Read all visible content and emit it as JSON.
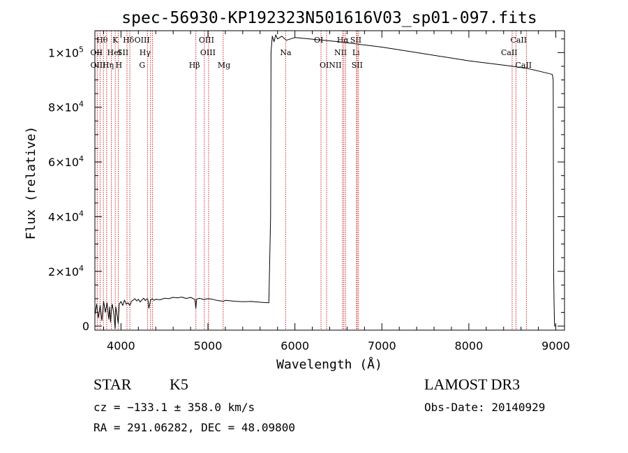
{
  "chart_data": {
    "type": "line",
    "title": "spec-56930-KP192323N501616V03_sp01-097.fits",
    "xlabel": "Wavelength (Å)",
    "ylabel": "Flux (relative)",
    "xlim": [
      3700,
      9100
    ],
    "ylim": [
      -1500,
      108000
    ],
    "x_ticks": [
      4000,
      5000,
      6000,
      7000,
      8000,
      9000
    ],
    "x_tick_labels": [
      "4000",
      "5000",
      "6000",
      "7000",
      "8000",
      "9000"
    ],
    "y_ticks": [
      {
        "value": 0,
        "mant": "0",
        "exp": ""
      },
      {
        "value": 20000,
        "mant": "2×10",
        "exp": "4"
      },
      {
        "value": 40000,
        "mant": "4×10",
        "exp": "4"
      },
      {
        "value": 60000,
        "mant": "6×10",
        "exp": "4"
      },
      {
        "value": 80000,
        "mant": "8×10",
        "exp": "4"
      },
      {
        "value": 100000,
        "mant": "1×10",
        "exp": "5"
      }
    ],
    "series": [
      {
        "name": "flux",
        "x": [
          3700,
          3720,
          3740,
          3760,
          3780,
          3800,
          3820,
          3840,
          3860,
          3870,
          3880,
          3890,
          3900,
          3920,
          3933,
          3940,
          3960,
          3968,
          3980,
          4000,
          4020,
          4040,
          4060,
          4080,
          4101,
          4120,
          4140,
          4160,
          4180,
          4200,
          4220,
          4240,
          4260,
          4280,
          4300,
          4310,
          4320,
          4340,
          4360,
          4380,
          4400,
          4450,
          4500,
          4550,
          4600,
          4650,
          4700,
          4750,
          4800,
          4850,
          4861,
          4870,
          4900,
          4950,
          5000,
          5050,
          5100,
          5150,
          5175,
          5200,
          5300,
          5400,
          5500,
          5600,
          5700,
          5720,
          5725,
          5740,
          5760,
          5780,
          5800,
          5850,
          5900,
          6000,
          6500,
          7000,
          7500,
          8000,
          8500,
          8700,
          8900,
          8960,
          8970,
          8975,
          8980,
          8985,
          9000
        ],
        "y": [
          4000,
          8000,
          3000,
          7500,
          2000,
          9000,
          5000,
          8500,
          2500,
          7000,
          1500,
          6000,
          8000,
          4000,
          -1000,
          7000,
          3000,
          1000,
          8000,
          9000,
          7500,
          9500,
          8000,
          8500,
          7500,
          9000,
          9500,
          10000,
          9200,
          9800,
          8800,
          9500,
          10200,
          9300,
          10000,
          9600,
          6500,
          9500,
          10000,
          9400,
          9800,
          9600,
          10200,
          10000,
          10500,
          10300,
          10600,
          10100,
          10500,
          9700,
          6500,
          9800,
          10200,
          9700,
          10000,
          9800,
          9400,
          9200,
          9000,
          9400,
          9100,
          8900,
          9000,
          8700,
          8500,
          40000,
          100000,
          106000,
          104000,
          106500,
          105000,
          106000,
          104500,
          105500,
          104000,
          102000,
          99500,
          97000,
          95000,
          94000,
          92500,
          92000,
          90000,
          20000,
          9000,
          0,
          0
        ]
      }
    ],
    "lines": [
      {
        "label": "Hθ",
        "wave": 3798,
        "row": 0,
        "dx": -10
      },
      {
        "label": "OII",
        "wave": 3727,
        "row": 1,
        "dx": -10
      },
      {
        "label": "OIII",
        "wave": 3760,
        "row": 2,
        "dx": -14
      },
      {
        "label": "K",
        "wave": 3934,
        "row": 0,
        "dx": -4
      },
      {
        "label": "HeI",
        "wave": 3889,
        "row": 1,
        "dx": -6
      },
      {
        "label": "Hη",
        "wave": 3835,
        "row": 2,
        "dx": -6
      },
      {
        "label": "H",
        "wave": 3969,
        "row": 2,
        "dx": -4
      },
      {
        "label": "SII",
        "wave": 4069,
        "row": 1,
        "dx": -14
      },
      {
        "label": "Hδ",
        "wave": 4102,
        "row": 0,
        "dx": -10
      },
      {
        "label": "OIII",
        "wave": 4363,
        "row": 0,
        "dx": -26
      },
      {
        "label": "Hγ",
        "wave": 4340,
        "row": 1,
        "dx": -16
      },
      {
        "label": "G",
        "wave": 4305,
        "row": 2,
        "dx": -12
      },
      {
        "label": "OIII",
        "wave": 5007,
        "row": 0,
        "dx": -14
      },
      {
        "label": "OIII",
        "wave": 4959,
        "row": 1,
        "dx": -6
      },
      {
        "label": "Hβ",
        "wave": 4861,
        "row": 2,
        "dx": -10
      },
      {
        "label": "Mg",
        "wave": 5175,
        "row": 2,
        "dx": -8
      },
      {
        "label": "Na",
        "wave": 5893,
        "row": 1,
        "dx": -8
      },
      {
        "label": "OI",
        "wave": 6300,
        "row": 0,
        "dx": -10
      },
      {
        "label": "OI",
        "wave": 6364,
        "row": 2,
        "dx": -10
      },
      {
        "label": "Hα",
        "wave": 6563,
        "row": 0,
        "dx": -10
      },
      {
        "label": "NII",
        "wave": 6548,
        "row": 1,
        "dx": -12
      },
      {
        "label": "NII",
        "wave": 6583,
        "row": 2,
        "dx": -24
      },
      {
        "label": "SII",
        "wave": 6716,
        "row": 0,
        "dx": -10
      },
      {
        "label": "Li",
        "wave": 6708,
        "row": 1,
        "dx": -6
      },
      {
        "label": "SII",
        "wave": 6731,
        "row": 2,
        "dx": -10
      },
      {
        "label": "CaII",
        "wave": 8542,
        "row": 0,
        "dx": -8
      },
      {
        "label": "CaII",
        "wave": 8498,
        "row": 1,
        "dx": -16
      },
      {
        "label": "CaII",
        "wave": 8662,
        "row": 2,
        "dx": -16
      }
    ],
    "grid": false
  },
  "info": {
    "object_class": "STAR",
    "subclass": "K5",
    "survey": "LAMOST DR3",
    "cz": "cz = −133.1 ± 358.0 km/s",
    "obs_date": "Obs-Date: 20140929",
    "coords": "RA = 291.06282, DEC =  48.09800"
  },
  "colors": {
    "spectrum": "#000000",
    "line_marker": "#cc2a2a",
    "axis": "#000000"
  }
}
